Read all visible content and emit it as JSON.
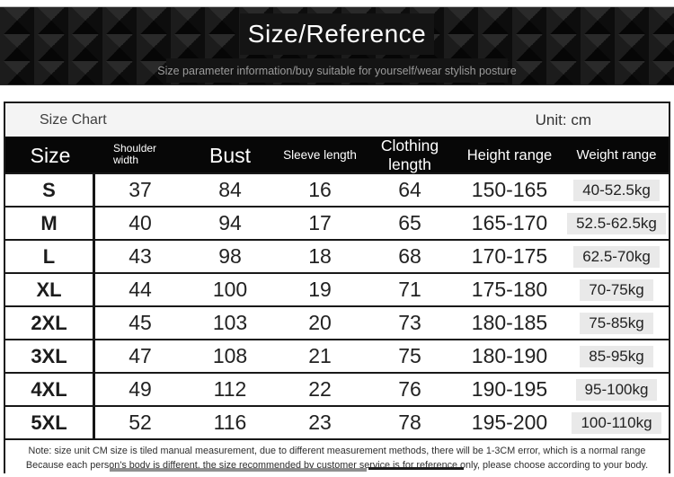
{
  "banner": {
    "title": "Size/Reference",
    "subtitle": "Size parameter information/buy suitable for yourself/wear stylish posture"
  },
  "panel": {
    "header": {
      "title": "Size Chart",
      "unit_label": "Unit: cm"
    },
    "note_line1": "Note: size unit CM size is tiled manual measurement, due to different measurement methods, there will be 1-3CM error, which is a normal range",
    "note_line2": "Because each person's body is different, the size recommended by customer service is for reference only, please choose according to your body."
  },
  "chart_data": {
    "type": "table",
    "title": "Size Chart",
    "unit": "cm",
    "columns": [
      "Size",
      "Shoulder width",
      "Bust",
      "Sleeve length",
      "Clothing length",
      "Height range",
      "Weight range"
    ],
    "rows": [
      [
        "S",
        "37",
        "84",
        "16",
        "64",
        "150-165",
        "40-52.5kg"
      ],
      [
        "M",
        "40",
        "94",
        "17",
        "65",
        "165-170",
        "52.5-62.5kg"
      ],
      [
        "L",
        "43",
        "98",
        "18",
        "68",
        "170-175",
        "62.5-70kg"
      ],
      [
        "XL",
        "44",
        "100",
        "19",
        "71",
        "175-180",
        "70-75kg"
      ],
      [
        "2XL",
        "45",
        "103",
        "20",
        "73",
        "180-185",
        "75-85kg"
      ],
      [
        "3XL",
        "47",
        "108",
        "21",
        "75",
        "180-190",
        "85-95kg"
      ],
      [
        "4XL",
        "49",
        "112",
        "22",
        "76",
        "190-195",
        "95-100kg"
      ],
      [
        "5XL",
        "52",
        "116",
        "23",
        "78",
        "195-200",
        "100-110kg"
      ]
    ]
  },
  "colors": {
    "banner_bg": "#121212",
    "table_header_bg": "#070707",
    "table_header_text": "#ffffff",
    "panel_header_bg": "#f4f4f4",
    "row_bg": "#ffffff",
    "border": "#181818",
    "weight_badge_bg": "#e9e9e9"
  }
}
